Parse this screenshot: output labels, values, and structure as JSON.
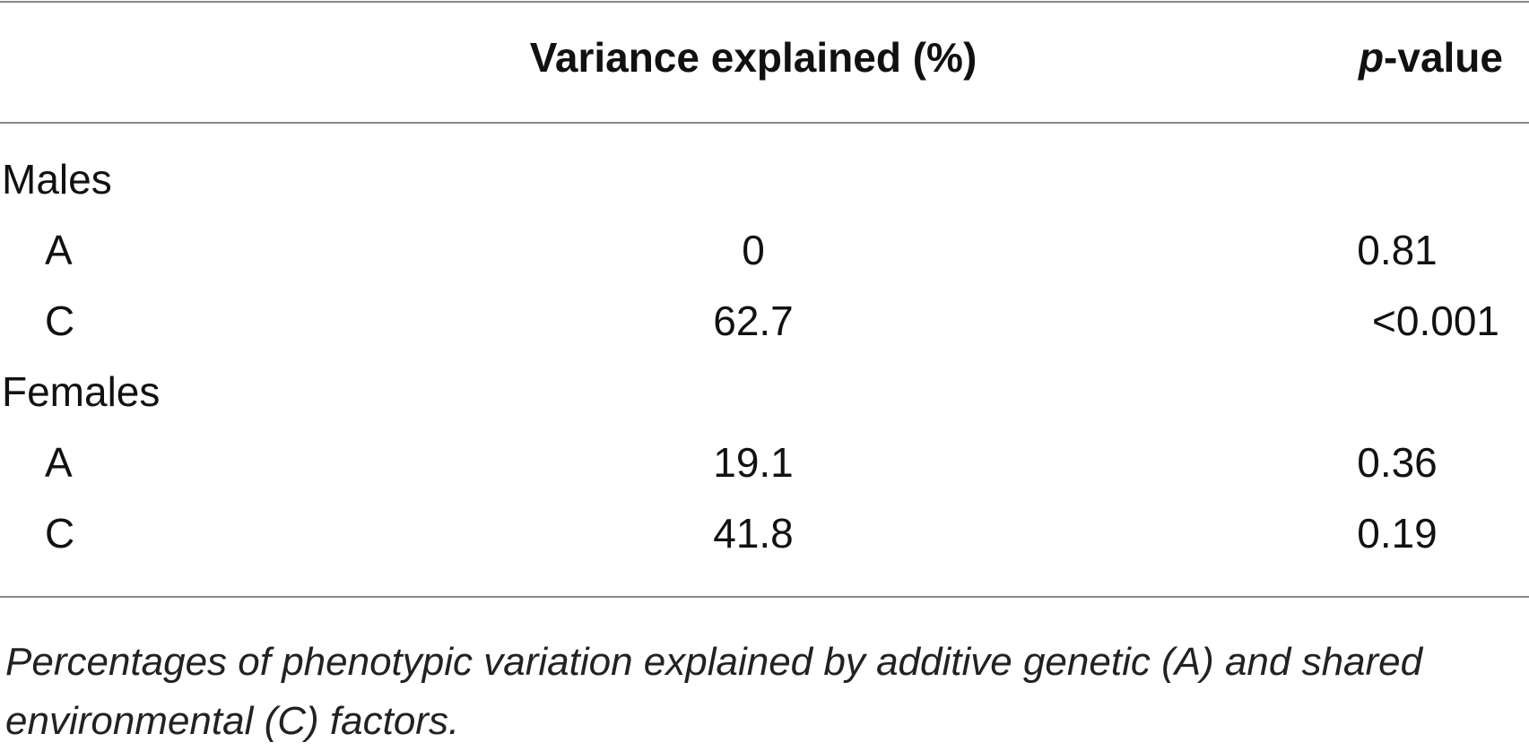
{
  "table": {
    "header": {
      "variance": "Variance explained (%)",
      "p_italic": "p",
      "p_rest": "-value"
    },
    "groups": [
      {
        "label": "Males",
        "rows": [
          {
            "factor": "A",
            "variance": "0",
            "p": "0.81"
          },
          {
            "factor": "C",
            "variance": "62.7",
            "p": "<0.001"
          }
        ]
      },
      {
        "label": "Females",
        "rows": [
          {
            "factor": "A",
            "variance": "19.1",
            "p": "0.36"
          },
          {
            "factor": "C",
            "variance": "41.8",
            "p": "0.19"
          }
        ]
      }
    ],
    "caption": "Percentages of phenotypic variation explained by additive genetic (A) and shared environmental (C) factors."
  }
}
